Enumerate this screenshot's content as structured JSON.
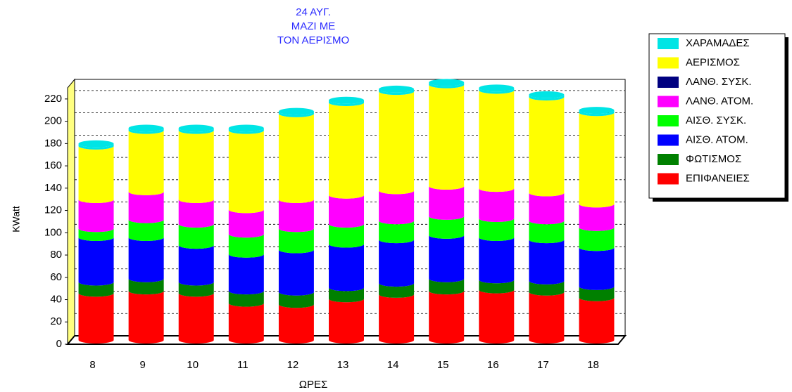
{
  "chart_data": {
    "type": "stacked-cylinder-bar",
    "title": [
      "24 ΑΥΓ.",
      "ΜΑΖΙ ΜΕ",
      "ΤΟΝ ΑΕΡΙΣΜΟ"
    ],
    "x_label": "ΩΡΕΣ",
    "y_label": "KWatt",
    "categories": [
      "8",
      "9",
      "10",
      "11",
      "12",
      "13",
      "14",
      "15",
      "16",
      "17",
      "18"
    ],
    "ylim": [
      0,
      230
    ],
    "yticks": [
      0,
      20,
      40,
      60,
      80,
      100,
      120,
      140,
      160,
      180,
      200,
      220
    ],
    "grid": true,
    "legend": "right",
    "series": [
      {
        "name": "ΕΠΙΦΑΝΕΙΕΣ",
        "color": "#ff0000",
        "values": [
          42,
          44,
          42,
          33,
          32,
          37,
          41,
          44,
          45,
          43,
          38
        ]
      },
      {
        "name": "ΦΩΤΙΣΜΟΣ",
        "color": "#008000",
        "values": [
          10,
          11,
          10,
          11,
          11,
          10,
          10,
          11,
          9,
          10,
          10
        ]
      },
      {
        "name": "ΑΙΣΘ. ΑΤΟΜ.",
        "color": "#0000ff",
        "values": [
          40,
          37,
          33,
          33,
          38,
          39,
          39,
          39,
          38,
          37,
          35
        ]
      },
      {
        "name": "ΑΙΣΘ. ΣΥΣΚ.",
        "color": "#00ff00",
        "values": [
          8,
          16,
          19,
          18,
          19,
          18,
          17,
          17,
          17,
          17,
          18
        ]
      },
      {
        "name": "ΛΑΝΘ. ΑΤΟΜ.",
        "color": "#ff00ff",
        "values": [
          26,
          25,
          22,
          22,
          26,
          26,
          27,
          27,
          27,
          25,
          21
        ]
      },
      {
        "name": "ΛΑΝΘ. ΣΥΣΚ.",
        "color": "#000080",
        "values": [
          0,
          0,
          0,
          0,
          0,
          0,
          0,
          0,
          0,
          0,
          0
        ]
      },
      {
        "name": "ΑΕΡΙΣΜΟΣ",
        "color": "#ffff00",
        "values": [
          48,
          55,
          62,
          71,
          77,
          83,
          89,
          91,
          88,
          86,
          82
        ]
      },
      {
        "name": "ΧΑΡΑΜΑΔΕΣ",
        "color": "#00e5e5",
        "values": [
          2,
          2,
          2,
          2,
          2,
          2,
          2,
          2,
          2,
          2,
          2
        ]
      }
    ]
  }
}
